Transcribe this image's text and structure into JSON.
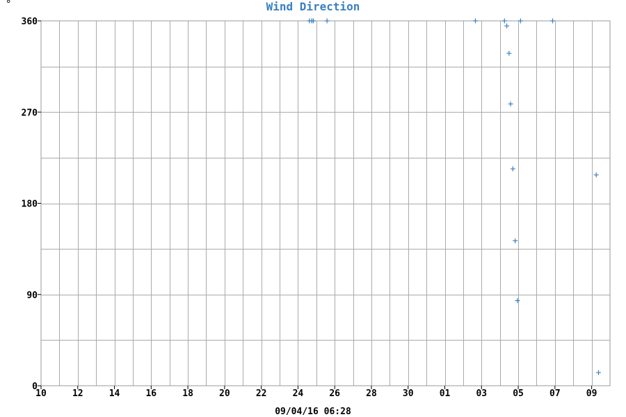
{
  "chart_data": {
    "type": "scatter",
    "title": "Wind Direction",
    "ylabel": "°",
    "xlabel": "09/04/16 06:28",
    "title_color": "#3a7fc1",
    "marker_color": "#3a7fc1",
    "grid": true,
    "marker": "plus",
    "ylim": [
      0,
      360
    ],
    "y_ticks": [
      {
        "value": 0,
        "label": "0"
      },
      {
        "value": 90,
        "label": "90"
      },
      {
        "value": 180,
        "label": "180"
      },
      {
        "value": 270,
        "label": "270"
      },
      {
        "value": 360,
        "label": "360"
      }
    ],
    "xlim": [
      "2016-03-10",
      "2016-04-10"
    ],
    "x_ticks": [
      {
        "date": "2016-03-10",
        "label": "10"
      },
      {
        "date": "2016-03-12",
        "label": "12"
      },
      {
        "date": "2016-03-14",
        "label": "14"
      },
      {
        "date": "2016-03-16",
        "label": "16"
      },
      {
        "date": "2016-03-18",
        "label": "18"
      },
      {
        "date": "2016-03-20",
        "label": "20"
      },
      {
        "date": "2016-03-22",
        "label": "22"
      },
      {
        "date": "2016-03-24",
        "label": "24"
      },
      {
        "date": "2016-03-26",
        "label": "26"
      },
      {
        "date": "2016-03-28",
        "label": "28"
      },
      {
        "date": "2016-03-30",
        "label": "30"
      },
      {
        "date": "2016-04-01",
        "label": "01"
      },
      {
        "date": "2016-04-03",
        "label": "03"
      },
      {
        "date": "2016-04-05",
        "label": "05"
      },
      {
        "date": "2016-04-07",
        "label": "07"
      },
      {
        "date": "2016-04-09",
        "label": "09"
      }
    ],
    "points": [
      {
        "x": "2016-03-24 15:00",
        "y": 360
      },
      {
        "x": "2016-03-24 18:00",
        "y": 360
      },
      {
        "x": "2016-03-24 20:00",
        "y": 360
      },
      {
        "x": "2016-03-25 14:00",
        "y": 360
      },
      {
        "x": "2016-04-02 16:00",
        "y": 360
      },
      {
        "x": "2016-04-04 06:00",
        "y": 360
      },
      {
        "x": "2016-04-04 09:00",
        "y": 355
      },
      {
        "x": "2016-04-04 12:00",
        "y": 328
      },
      {
        "x": "2016-04-04 14:00",
        "y": 278
      },
      {
        "x": "2016-04-04 17:00",
        "y": 214
      },
      {
        "x": "2016-04-04 20:00",
        "y": 143
      },
      {
        "x": "2016-04-04 23:00",
        "y": 84
      },
      {
        "x": "2016-04-05 03:00",
        "y": 360
      },
      {
        "x": "2016-04-06 21:00",
        "y": 360
      },
      {
        "x": "2016-04-09 06:00",
        "y": 208
      },
      {
        "x": "2016-04-09 09:00",
        "y": 13
      }
    ]
  }
}
